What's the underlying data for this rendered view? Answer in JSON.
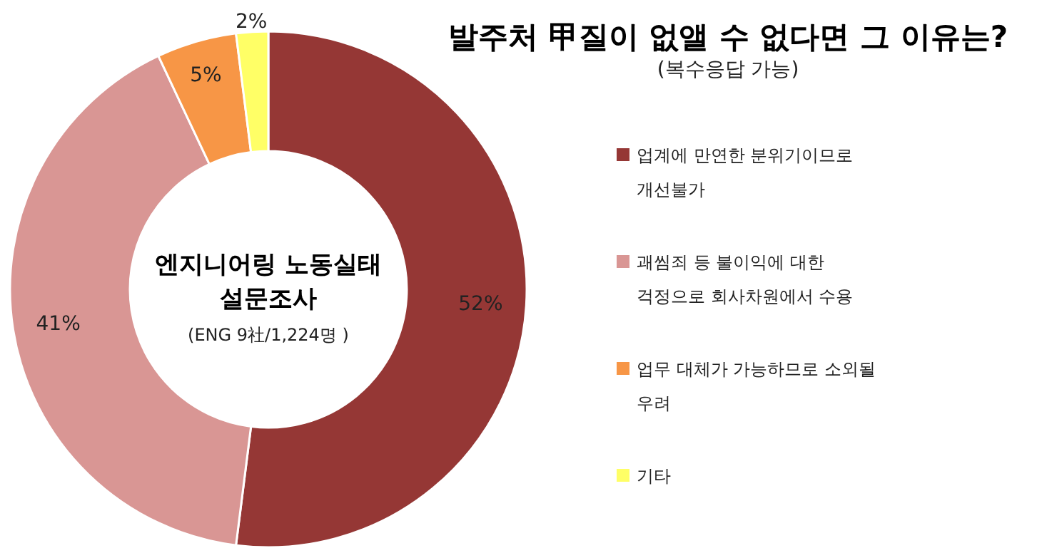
{
  "chart_data": {
    "type": "donut",
    "title": "발주처 甲질이 없앨 수 없다면 그 이유는?",
    "subtitle": "(복수응답 가능)",
    "categories": [
      "업계에 만연한 분위기이므로 개선불가",
      "괘씸죄 등 불이익에 대한 걱정으로 회사차원에서 수용",
      "업무 대체가 가능하므로 소외될 우려",
      "기타"
    ],
    "values": [
      52,
      41,
      5,
      2
    ],
    "colors": [
      "#953735",
      "#d99694",
      "#f79646",
      "#ffff66"
    ],
    "annotations": [
      "엔지니어링 노동실태 설문조사",
      "(ENG 9社/1,224명 )"
    ],
    "value_labels": [
      "52%",
      "41%",
      "5%",
      "2%"
    ],
    "legend": "right"
  }
}
